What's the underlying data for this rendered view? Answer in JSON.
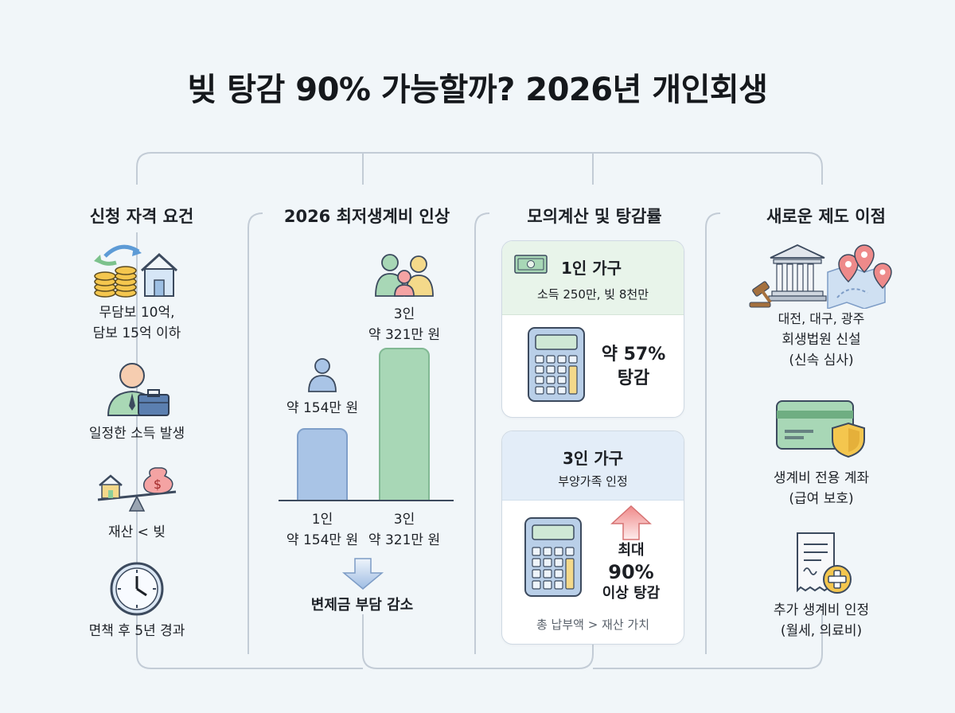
{
  "title": "빚 탕감 90% 가능할까? 2026년 개인회생",
  "columns": {
    "eligibility": {
      "title": "신청 자격 요건",
      "items": [
        {
          "icon": "coins-house-icon",
          "label_line1": "무담보 10억,",
          "label_line2": "담보 15억 이하"
        },
        {
          "icon": "worker-briefcase-icon",
          "label_line1": "일정한 소득 발생"
        },
        {
          "icon": "balance-scale-icon",
          "label_line1": "재산 < 빚"
        },
        {
          "icon": "clock-icon",
          "label_line1": "면책 후 5년 경과"
        }
      ]
    },
    "living_cost": {
      "title": "2026 최저생계비 인상",
      "bar_top_labels": [
        {
          "line1": "약 154만 원"
        },
        {
          "line1": "3인",
          "line2": "약 321만 원"
        }
      ],
      "axis_labels": [
        {
          "line1": "1인",
          "line2": "약 154만 원"
        },
        {
          "line1": "3인",
          "line2": "약 321만 원"
        }
      ],
      "conclusion": "변제금 부담 감소"
    },
    "simulation": {
      "title": "모의계산 및 탕감률",
      "card1": {
        "title": "1인 가구",
        "subtitle": "소득 250만, 빚 8천만",
        "result_line1": "약 57%",
        "result_line2": "탕감"
      },
      "card2": {
        "title": "3인 가구",
        "subtitle": "부양가족 인정",
        "result_line1": "최대",
        "result_line2": "90%",
        "result_line3": "이상 탕감",
        "footer": "총 납부액 > 재산 가치"
      }
    },
    "benefits": {
      "title": "새로운 제도 이점",
      "items": [
        {
          "icon": "court-map-icon",
          "label_line1": "대전, 대구, 광주",
          "label_line2": "회생법원 신설",
          "label_line3": "(신속 심사)"
        },
        {
          "icon": "card-shield-icon",
          "label_line1": "생계비 전용 계좌",
          "label_line2": "(급여 보호)"
        },
        {
          "icon": "receipt-plus-icon",
          "label_line1": "추가 생계비 인정",
          "label_line2": "(월세, 의료비)"
        }
      ]
    }
  },
  "chart_data": {
    "type": "bar",
    "categories": [
      "1인",
      "3인"
    ],
    "values": [
      154,
      321
    ],
    "ylim": [
      0,
      340
    ]
  },
  "colors": {
    "bar_1": "#a9c4e6",
    "bar_3": "#a8d7b6",
    "connector": "#c3ccd6"
  }
}
